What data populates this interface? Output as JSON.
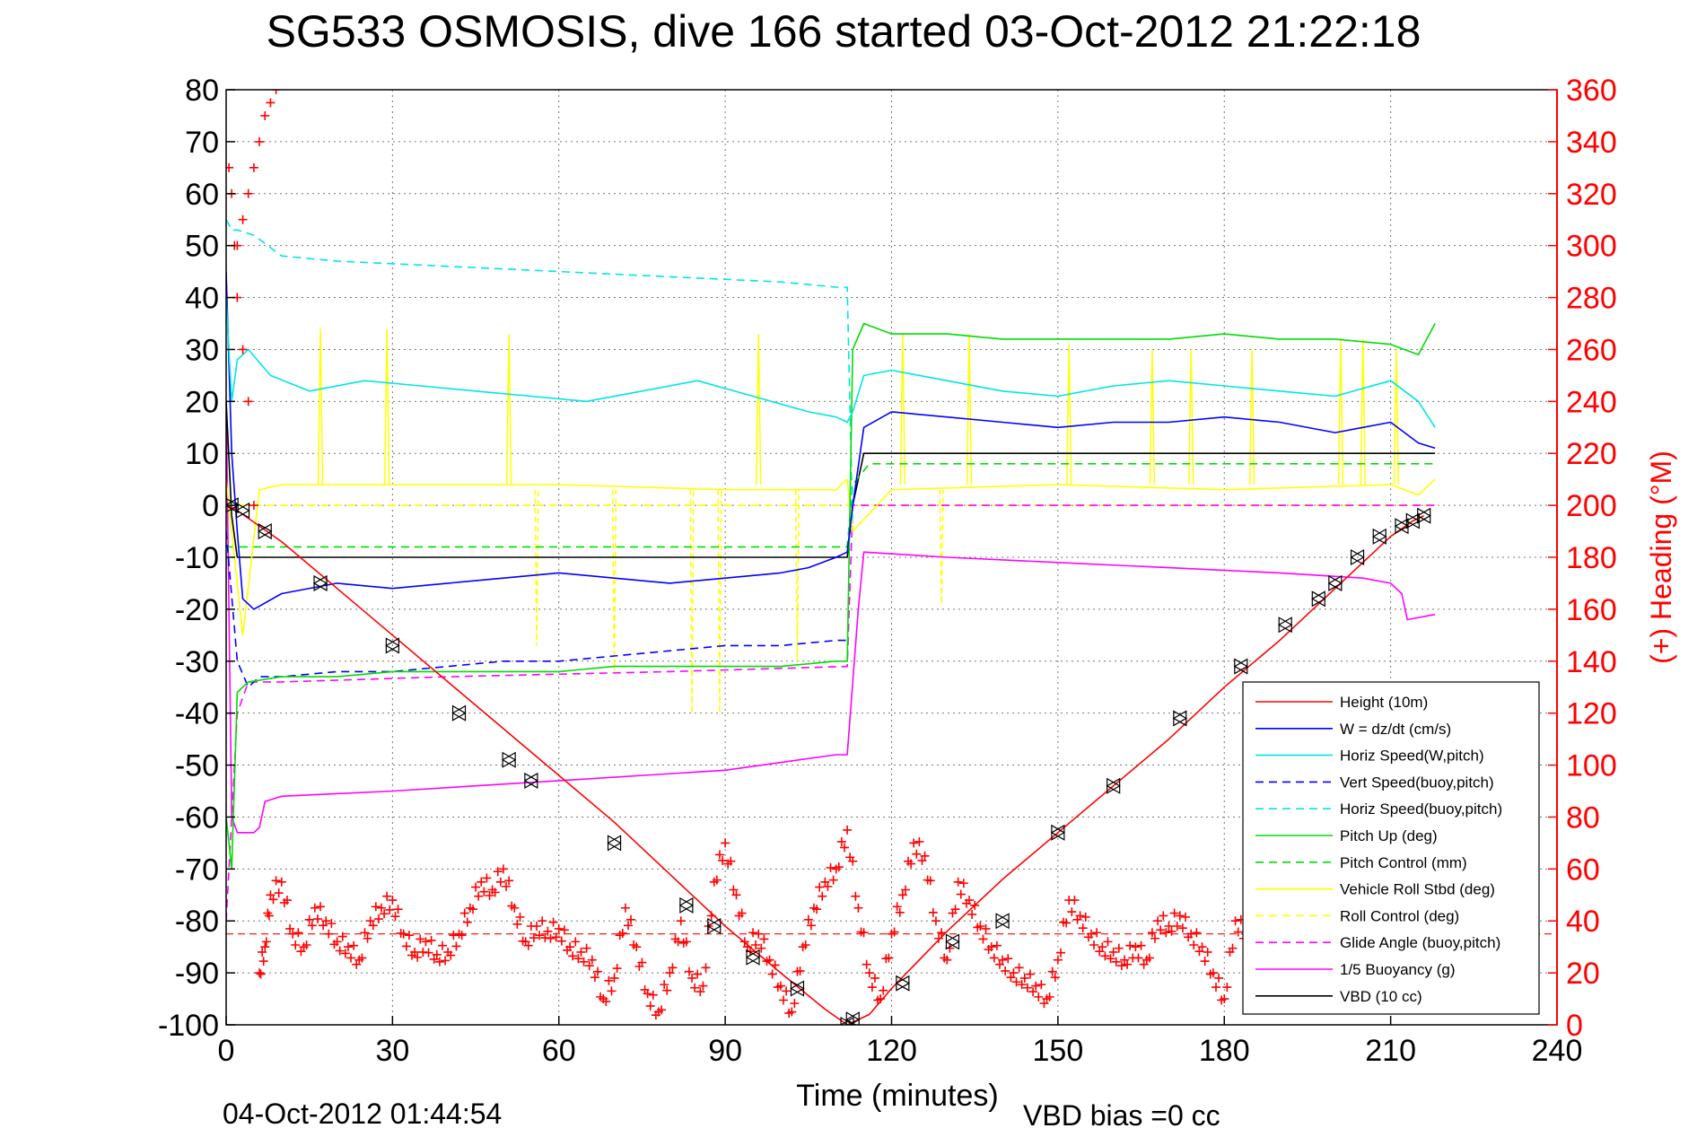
{
  "chart_data": {
    "type": "line",
    "title": "SG533 OSMOSIS, dive 166 started 03-Oct-2012 21:22:18",
    "xlabel": "Time (minutes)",
    "ylabel": "",
    "y2label": "(+) Heading (°M)",
    "footer_left": "04-Oct-2012 01:44:54",
    "footer_right": "VBD bias =0 cc",
    "xlim": [
      0,
      240
    ],
    "ylim": [
      -100,
      80
    ],
    "y2lim": [
      0,
      360
    ],
    "grid": true,
    "legend_position": "bottom-right",
    "x_ticks": [
      0,
      30,
      60,
      90,
      120,
      150,
      180,
      210,
      240
    ],
    "y_ticks": [
      80,
      70,
      60,
      50,
      40,
      30,
      20,
      10,
      0,
      -10,
      -20,
      -30,
      -40,
      -50,
      -60,
      -70,
      -80,
      -90,
      -100
    ],
    "y2_ticks": [
      360,
      340,
      320,
      300,
      280,
      260,
      240,
      220,
      200,
      180,
      160,
      140,
      120,
      100,
      80,
      60,
      40,
      20,
      0
    ],
    "colors": {
      "height": "#ff0000",
      "w": "#0000ff",
      "horiz_w": "#00e5e5",
      "vert_buoy": "#0000ff",
      "horiz_buoy": "#00e5e5",
      "pitch": "#00dd00",
      "pitch_control": "#00dd00",
      "roll": "#ffff00",
      "roll_control": "#ffff00",
      "glide": "#ff00ff",
      "buoyancy": "#ff00ff",
      "vbd": "#000000",
      "heading": "#ff0000",
      "right_axis": "#ff0000"
    },
    "series": [
      {
        "key": "height",
        "name": "Height (10m)",
        "style": "solid",
        "x": [
          0,
          2,
          10,
          20,
          30,
          40,
          50,
          60,
          70,
          80,
          90,
          100,
          108,
          112,
          116,
          120,
          130,
          140,
          150,
          160,
          170,
          180,
          190,
          200,
          210,
          214,
          216
        ],
        "values": [
          0,
          -1,
          -7,
          -16,
          -25,
          -34,
          -43,
          -52,
          -61,
          -71,
          -81,
          -90,
          -97,
          -100,
          -98,
          -93,
          -82,
          -72,
          -63,
          -54,
          -45,
          -35,
          -26,
          -16,
          -6,
          -3,
          -2
        ]
      },
      {
        "key": "w",
        "name": "W = dz/dt (cm/s)",
        "style": "solid",
        "x": [
          0,
          1,
          2,
          3,
          5,
          10,
          20,
          30,
          40,
          50,
          60,
          70,
          80,
          90,
          100,
          105,
          110,
          112,
          113,
          115,
          120,
          130,
          140,
          150,
          160,
          170,
          180,
          190,
          200,
          205,
          210,
          215,
          218
        ],
        "values": [
          45,
          10,
          -5,
          -18,
          -20,
          -17,
          -15,
          -16,
          -15,
          -14,
          -13,
          -14,
          -15,
          -14,
          -13,
          -12,
          -10,
          -9,
          0,
          15,
          18,
          17,
          16,
          15,
          16,
          16,
          17,
          16,
          14,
          15,
          16,
          12,
          11
        ]
      },
      {
        "key": "horiz_w",
        "name": "Horiz Speed(W,pitch)",
        "style": "solid",
        "x": [
          0,
          1,
          2,
          4,
          8,
          15,
          25,
          35,
          45,
          55,
          65,
          75,
          85,
          95,
          105,
          110,
          112,
          113,
          115,
          120,
          130,
          140,
          150,
          160,
          170,
          180,
          190,
          200,
          210,
          215,
          218
        ],
        "values": [
          40,
          20,
          28,
          30,
          25,
          22,
          24,
          23,
          22,
          21,
          20,
          22,
          24,
          21,
          18,
          17,
          16,
          18,
          25,
          26,
          24,
          22,
          21,
          23,
          24,
          23,
          22,
          21,
          24,
          20,
          15
        ]
      },
      {
        "key": "vert_buoy",
        "name": "Vert Speed(buoy,pitch)",
        "style": "dashed",
        "x": [
          0,
          2,
          4,
          6,
          10,
          20,
          30,
          40,
          50,
          60,
          70,
          80,
          90,
          100,
          110,
          112
        ],
        "values": [
          -5,
          -30,
          -35,
          -33,
          -33,
          -32,
          -32,
          -31,
          -30,
          -30,
          -29,
          -28,
          -27,
          -27,
          -26,
          -26
        ]
      },
      {
        "key": "horiz_buoy",
        "name": "Horiz Speed(buoy,pitch)",
        "style": "dashed",
        "x": [
          0,
          1,
          2,
          5,
          10,
          20,
          40,
          60,
          80,
          100,
          110,
          112,
          113
        ],
        "values": [
          55,
          53,
          53,
          52,
          48,
          47,
          46,
          45,
          44,
          43,
          42,
          42,
          -5
        ]
      },
      {
        "key": "pitch",
        "name": "Pitch Up (deg)",
        "style": "solid",
        "x": [
          0,
          1,
          2,
          4,
          10,
          20,
          30,
          40,
          50,
          60,
          70,
          80,
          90,
          100,
          110,
          112,
          113,
          115,
          120,
          130,
          140,
          150,
          160,
          170,
          180,
          190,
          200,
          210,
          215,
          218
        ],
        "values": [
          -60,
          -70,
          -36,
          -34,
          -33,
          -33,
          -32,
          -32,
          -32,
          -32,
          -31,
          -31,
          -31,
          -31,
          -30,
          -30,
          30,
          35,
          33,
          33,
          32,
          32,
          32,
          32,
          33,
          32,
          32,
          31,
          29,
          35
        ]
      },
      {
        "key": "pitch_control",
        "name": "Pitch Control (mm)",
        "style": "dashed",
        "x": [
          0,
          3,
          20,
          60,
          100,
          112,
          113,
          116,
          150,
          200,
          218
        ],
        "values": [
          -8,
          -8,
          -8,
          -8,
          -8,
          -8,
          4,
          8,
          8,
          8,
          8
        ]
      },
      {
        "key": "roll",
        "name": "Vehicle Roll Stbd (deg)",
        "style": "solid",
        "x": [
          0,
          3,
          6,
          10,
          30,
          60,
          90,
          110,
          112,
          113,
          120,
          150,
          180,
          210,
          215,
          218
        ],
        "values": [
          5,
          -25,
          3,
          4,
          4,
          4,
          3,
          3,
          5,
          -5,
          3,
          4,
          3,
          4,
          2,
          5
        ]
      },
      {
        "key": "roll_control",
        "name": "Roll Control (deg)",
        "style": "dashed",
        "x": [
          0,
          2,
          6,
          218
        ],
        "values": [
          0,
          0,
          0,
          0
        ]
      },
      {
        "key": "glide",
        "name": "Glide Angle (buoy,pitch)",
        "style": "dashed",
        "x": [
          0,
          2,
          4,
          10,
          40,
          80,
          112,
          113,
          218
        ],
        "values": [
          -80,
          -40,
          -34,
          -34,
          -33,
          -32,
          -31,
          0,
          0
        ]
      },
      {
        "key": "buoyancy",
        "name": "1/5 Buoyancy (g)",
        "style": "solid",
        "x": [
          0,
          1,
          2,
          5,
          6,
          7,
          10,
          30,
          60,
          90,
          110,
          112,
          114,
          115,
          130,
          150,
          170,
          190,
          205,
          210,
          212,
          213,
          218
        ],
        "values": [
          20,
          -60,
          -63,
          -63,
          -62,
          -57,
          -56,
          -55,
          -53,
          -51,
          -48,
          -48,
          -20,
          -9,
          -10,
          -11,
          -12,
          -13,
          -14,
          -15,
          -17,
          -22,
          -21
        ]
      },
      {
        "key": "vbd",
        "name": "VBD (10 cc)",
        "style": "solid",
        "x": [
          0,
          1,
          2,
          5,
          30,
          60,
          90,
          112,
          113,
          115,
          150,
          180,
          218
        ],
        "values": [
          20,
          -2,
          -10,
          -10,
          -10,
          -10,
          -10,
          -10,
          0,
          10,
          10,
          10,
          10
        ]
      }
    ],
    "roll_spikes": {
      "x": [
        17,
        29,
        51,
        96,
        122,
        134,
        152,
        167,
        174,
        185,
        201,
        205,
        211
      ],
      "up": [
        34,
        34,
        33,
        33,
        33,
        33,
        31,
        30,
        30,
        30,
        32,
        32,
        30
      ]
    },
    "roll_dips": {
      "x": [
        56,
        70,
        84,
        89,
        103,
        129
      ],
      "down": [
        -27,
        -32,
        -40,
        -40,
        -30,
        -19
      ]
    },
    "heading": {
      "name": "(+) Heading (°M)",
      "mean_line": 35,
      "x": [
        0.5,
        1,
        1.5,
        2,
        3,
        4,
        5,
        6,
        7,
        8,
        10,
        12,
        14,
        16,
        18,
        20,
        22,
        24,
        26,
        28,
        30,
        32,
        34,
        36,
        38,
        40,
        42,
        44,
        46,
        48,
        50,
        52,
        54,
        56,
        58,
        60,
        62,
        64,
        66,
        68,
        70,
        72,
        74,
        76,
        78,
        80,
        82,
        84,
        86,
        88,
        90,
        92,
        94,
        96,
        98,
        100,
        102,
        104,
        106,
        108,
        110,
        112,
        114,
        116,
        118,
        120,
        122,
        124,
        126,
        128,
        130,
        132,
        134,
        136,
        138,
        140,
        142,
        144,
        146,
        148,
        150,
        152,
        154,
        156,
        158,
        160,
        162,
        164,
        166,
        168,
        170,
        172,
        174,
        176,
        178,
        180,
        182,
        184,
        186,
        188,
        190
      ],
      "values": [
        330,
        320,
        300,
        280,
        260,
        240,
        200,
        20,
        30,
        50,
        55,
        35,
        30,
        45,
        40,
        32,
        30,
        25,
        40,
        45,
        48,
        35,
        28,
        32,
        27,
        28,
        35,
        45,
        55,
        52,
        60,
        45,
        32,
        38,
        36,
        37,
        30,
        28,
        25,
        10,
        18,
        45,
        30,
        12,
        5,
        20,
        40,
        18,
        15,
        55,
        70,
        50,
        30,
        35,
        25,
        15,
        5,
        30,
        45,
        55,
        60,
        75,
        45,
        20,
        10,
        35,
        50,
        70,
        65,
        40,
        25,
        55,
        48,
        38,
        30,
        25,
        20,
        18,
        15,
        10,
        25,
        48,
        42,
        35,
        30,
        28,
        25,
        30,
        25,
        40,
        38,
        42,
        35,
        30,
        20,
        10,
        40,
        35,
        30,
        25,
        30
      ]
    },
    "heading_early_streak": {
      "x": [
        2,
        3,
        4,
        5,
        6,
        7,
        8,
        9
      ],
      "values": [
        300,
        310,
        320,
        330,
        340,
        350,
        355,
        360
      ]
    },
    "markers": {
      "x": [
        1,
        3,
        7,
        17,
        30,
        42,
        51,
        55,
        70,
        83,
        88,
        95,
        103,
        112,
        113,
        122,
        131,
        140,
        150,
        160,
        172,
        183,
        191,
        197,
        200,
        204,
        208,
        212,
        214,
        216
      ],
      "values": [
        0,
        -1,
        -5,
        -15,
        -27,
        -40,
        -49,
        -53,
        -65,
        -77,
        -81,
        -87,
        -93,
        -100,
        -99,
        -92,
        -84,
        -80,
        -63,
        -54,
        -41,
        -31,
        -23,
        -18,
        -15,
        -10,
        -6,
        -4,
        -3,
        -2
      ]
    }
  }
}
